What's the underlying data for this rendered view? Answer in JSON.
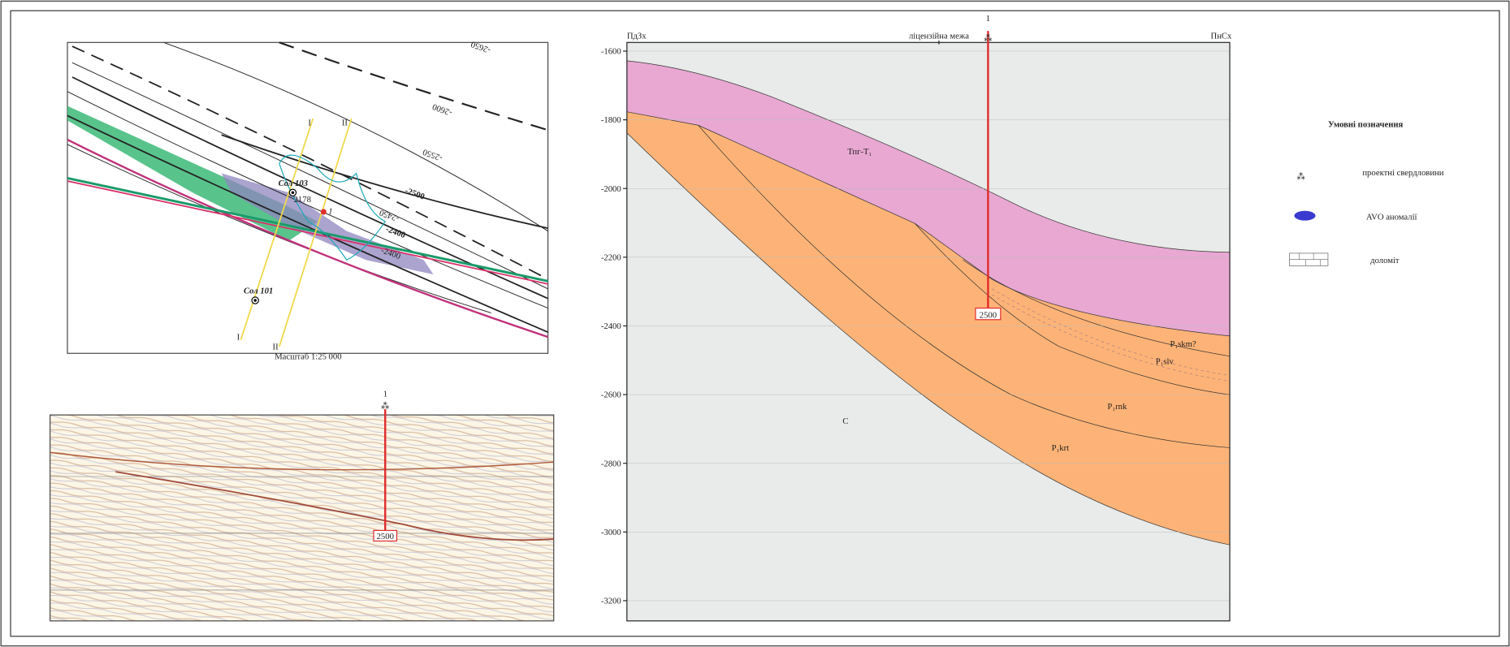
{
  "map": {
    "wells": [
      "Сол 103",
      "Сол 101"
    ],
    "well_number": "1",
    "well_value": "2178",
    "profiles": [
      "I",
      "II",
      "I",
      "II"
    ],
    "contours": [
      "-2650",
      "-2600",
      "-2550",
      "-2500",
      "-2450",
      "-2400",
      "-2400"
    ],
    "scale": "Масштаб 1:25 000"
  },
  "seismic": {
    "well_number": "1",
    "depth": "2500"
  },
  "section": {
    "left": "ПдЗх",
    "right": "ПнСх",
    "boundary": "ліцензійна межа",
    "well_number": "1",
    "depth": "2500",
    "ylim": [
      -1600,
      -3200
    ],
    "yticks": [
      -1600,
      -1800,
      -2000,
      -2200,
      -2400,
      -2600,
      -2800,
      -3000,
      -3200
    ],
    "layers": [
      "Тпг-Т₁",
      "P₁skm?",
      "P₁slv",
      "P₁rnk",
      "P₁krt",
      "C"
    ]
  },
  "legend": {
    "title": "Умовні позначення",
    "items": [
      "проектні свердловини",
      "AVO аномалії",
      "доломіт"
    ]
  }
}
